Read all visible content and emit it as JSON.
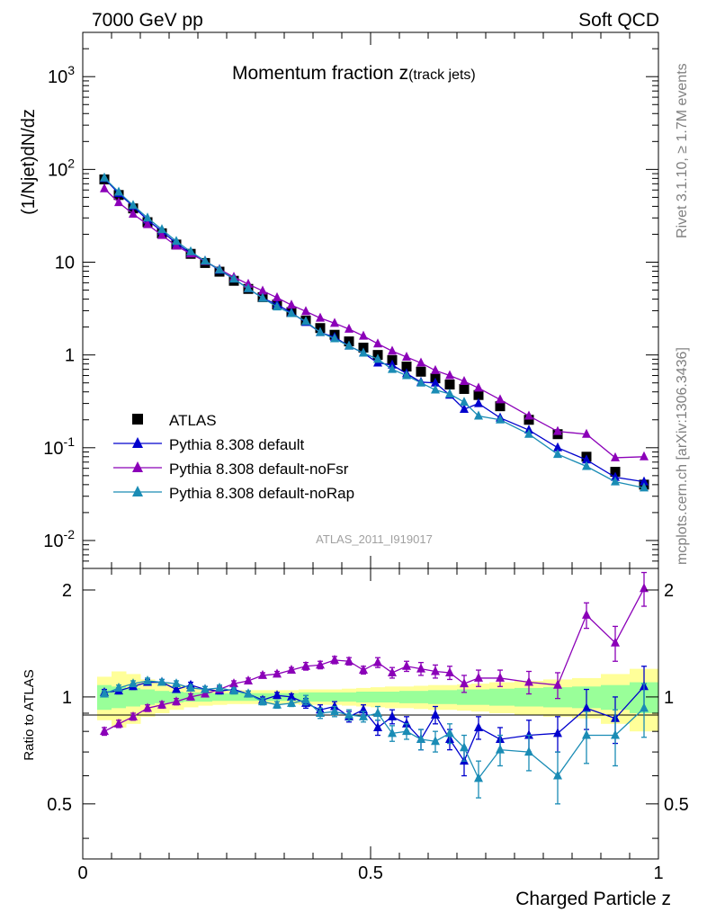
{
  "header": {
    "left": "7000 GeV pp",
    "right": "Soft QCD"
  },
  "side": {
    "rivet": "Rivet 3.1.10, ≥ 1.7M events",
    "mcplots": "mcplots.cern.ch [arXiv:1306.3436]"
  },
  "chart_data": {
    "type": "scatter",
    "title_main": "Momentum fraction z",
    "title_sub": "(track jets)",
    "analysis_id": "ATLAS_2011_I919017",
    "ylabel": "(1/Njet)dN/dz",
    "ratio_ylabel": "Ratio to ATLAS",
    "xlabel": "Charged Particle z",
    "xlim": [
      0,
      1
    ],
    "ylim_main": [
      0.005,
      3000
    ],
    "ylim_ratio": [
      0.35,
      2.3
    ],
    "log_y_main": true,
    "x_ticks": [
      "0",
      "0.5",
      "1"
    ],
    "y_ticks_main": [
      "10^-2",
      "10^-1",
      "1",
      "10",
      "10^2",
      "10^3"
    ],
    "y_ticks_ratio": [
      "0.5",
      "1",
      "2"
    ],
    "legend_position": "lower-left",
    "x": [
      0.0375,
      0.0625,
      0.0875,
      0.1125,
      0.1375,
      0.1625,
      0.1875,
      0.2125,
      0.2375,
      0.2625,
      0.2875,
      0.3125,
      0.3375,
      0.3625,
      0.3875,
      0.4125,
      0.4375,
      0.4625,
      0.4875,
      0.5125,
      0.5375,
      0.5625,
      0.5875,
      0.6125,
      0.6375,
      0.6625,
      0.6875,
      0.725,
      0.775,
      0.825,
      0.875,
      0.925,
      0.975
    ],
    "series": [
      {
        "name": "ATLAS",
        "color": "#000000",
        "marker": "square",
        "values": [
          78,
          53,
          38,
          27,
          20.5,
          15.5,
          12.3,
          9.8,
          7.9,
          6.3,
          5.15,
          4.2,
          3.5,
          2.9,
          2.35,
          1.95,
          1.65,
          1.4,
          1.2,
          1.0,
          0.88,
          0.75,
          0.66,
          0.56,
          0.48,
          0.43,
          0.37,
          0.28,
          0.2,
          0.14,
          0.08,
          0.055,
          0.04
        ],
        "ratio": [
          1,
          1,
          1,
          1,
          1,
          1,
          1,
          1,
          1,
          1,
          1,
          1,
          1,
          1,
          1,
          1,
          1,
          1,
          1,
          1,
          1,
          1,
          1,
          1,
          1,
          1,
          1,
          1,
          1,
          1,
          1,
          1,
          1
        ]
      },
      {
        "name": "Pythia 8.308 default",
        "color": "#0000cd",
        "marker": "triangle",
        "values": [
          80,
          55,
          40,
          28.5,
          21.5,
          16,
          12.5,
          10.3,
          8.2,
          6.6,
          5.2,
          4.1,
          3.5,
          2.85,
          2.25,
          1.75,
          1.55,
          1.25,
          1.05,
          0.82,
          0.78,
          0.63,
          0.51,
          0.5,
          0.37,
          0.26,
          0.3,
          0.21,
          0.155,
          0.1,
          0.074,
          0.048,
          0.043
        ],
        "ratio": [
          1.03,
          1.04,
          1.07,
          1.1,
          1.1,
          1.05,
          1.08,
          1.05,
          1.04,
          1.05,
          1.02,
          0.98,
          1.01,
          1.0,
          0.96,
          0.92,
          0.94,
          0.88,
          0.92,
          0.82,
          0.88,
          0.84,
          0.76,
          0.89,
          0.76,
          0.66,
          0.82,
          0.76,
          0.78,
          0.79,
          0.93,
          0.87,
          1.07
        ],
        "ratio_err": [
          0.02,
          0.02,
          0.02,
          0.02,
          0.02,
          0.02,
          0.02,
          0.02,
          0.02,
          0.02,
          0.02,
          0.02,
          0.02,
          0.02,
          0.03,
          0.03,
          0.03,
          0.03,
          0.03,
          0.04,
          0.04,
          0.04,
          0.05,
          0.05,
          0.05,
          0.06,
          0.06,
          0.06,
          0.08,
          0.09,
          0.12,
          0.13,
          0.15
        ]
      },
      {
        "name": "Pythia 8.308 default-noFsr",
        "color": "#8b00b8",
        "marker": "triangle",
        "values": [
          62,
          44,
          33,
          25.5,
          19.5,
          15,
          12.3,
          10.2,
          8.4,
          6.9,
          5.8,
          4.9,
          4.15,
          3.45,
          2.95,
          2.5,
          2.2,
          1.9,
          1.6,
          1.32,
          1.1,
          0.95,
          0.82,
          0.68,
          0.6,
          0.52,
          0.44,
          0.33,
          0.22,
          0.15,
          0.14,
          0.078,
          0.08
        ],
        "ratio": [
          0.8,
          0.84,
          0.88,
          0.93,
          0.95,
          0.97,
          1.0,
          1.02,
          1.05,
          1.09,
          1.11,
          1.15,
          1.16,
          1.19,
          1.22,
          1.23,
          1.27,
          1.26,
          1.19,
          1.25,
          1.17,
          1.22,
          1.2,
          1.18,
          1.17,
          1.09,
          1.13,
          1.13,
          1.1,
          1.08,
          1.7,
          1.42,
          2.02
        ],
        "ratio_err": [
          0.02,
          0.02,
          0.02,
          0.02,
          0.02,
          0.02,
          0.02,
          0.02,
          0.02,
          0.02,
          0.02,
          0.02,
          0.02,
          0.02,
          0.03,
          0.03,
          0.03,
          0.03,
          0.03,
          0.04,
          0.04,
          0.04,
          0.05,
          0.05,
          0.05,
          0.06,
          0.06,
          0.06,
          0.08,
          0.09,
          0.14,
          0.16,
          0.22
        ]
      },
      {
        "name": "Pythia 8.308 default-noRap",
        "color": "#1a8cb5",
        "marker": "triangle",
        "values": [
          81,
          57,
          41,
          30,
          22.5,
          16.8,
          13,
          10.3,
          8.3,
          6.6,
          5.2,
          4.1,
          3.3,
          2.8,
          2.3,
          1.75,
          1.5,
          1.25,
          1.05,
          0.9,
          0.7,
          0.6,
          0.5,
          0.42,
          0.38,
          0.31,
          0.22,
          0.2,
          0.14,
          0.085,
          0.063,
          0.043,
          0.037
        ],
        "ratio": [
          1.02,
          1.06,
          1.09,
          1.11,
          1.1,
          1.09,
          1.06,
          1.05,
          1.06,
          1.04,
          1.02,
          0.97,
          0.95,
          0.96,
          0.98,
          0.9,
          0.91,
          0.89,
          0.88,
          0.9,
          0.79,
          0.8,
          0.76,
          0.75,
          0.79,
          0.72,
          0.59,
          0.71,
          0.7,
          0.6,
          0.78,
          0.78,
          0.93
        ],
        "ratio_err": [
          0.02,
          0.02,
          0.02,
          0.02,
          0.02,
          0.02,
          0.02,
          0.02,
          0.02,
          0.02,
          0.02,
          0.02,
          0.02,
          0.02,
          0.03,
          0.03,
          0.03,
          0.03,
          0.03,
          0.04,
          0.04,
          0.04,
          0.05,
          0.05,
          0.05,
          0.06,
          0.07,
          0.07,
          0.08,
          0.1,
          0.13,
          0.14,
          0.16
        ]
      }
    ],
    "bands": {
      "green_halfwidth": [
        0.08,
        0.07,
        0.06,
        0.05,
        0.04,
        0.035,
        0.03,
        0.03,
        0.025,
        0.025,
        0.025,
        0.025,
        0.025,
        0.025,
        0.03,
        0.03,
        0.03,
        0.03,
        0.035,
        0.035,
        0.035,
        0.04,
        0.04,
        0.045,
        0.045,
        0.05,
        0.05,
        0.055,
        0.06,
        0.065,
        0.07,
        0.08,
        0.1
      ],
      "yellow_halfwidth": [
        0.14,
        0.18,
        0.16,
        0.12,
        0.1,
        0.08,
        0.065,
        0.055,
        0.05,
        0.045,
        0.045,
        0.045,
        0.045,
        0.045,
        0.05,
        0.05,
        0.05,
        0.055,
        0.06,
        0.065,
        0.07,
        0.07,
        0.075,
        0.08,
        0.08,
        0.085,
        0.09,
        0.1,
        0.11,
        0.12,
        0.13,
        0.16,
        0.2
      ]
    }
  }
}
